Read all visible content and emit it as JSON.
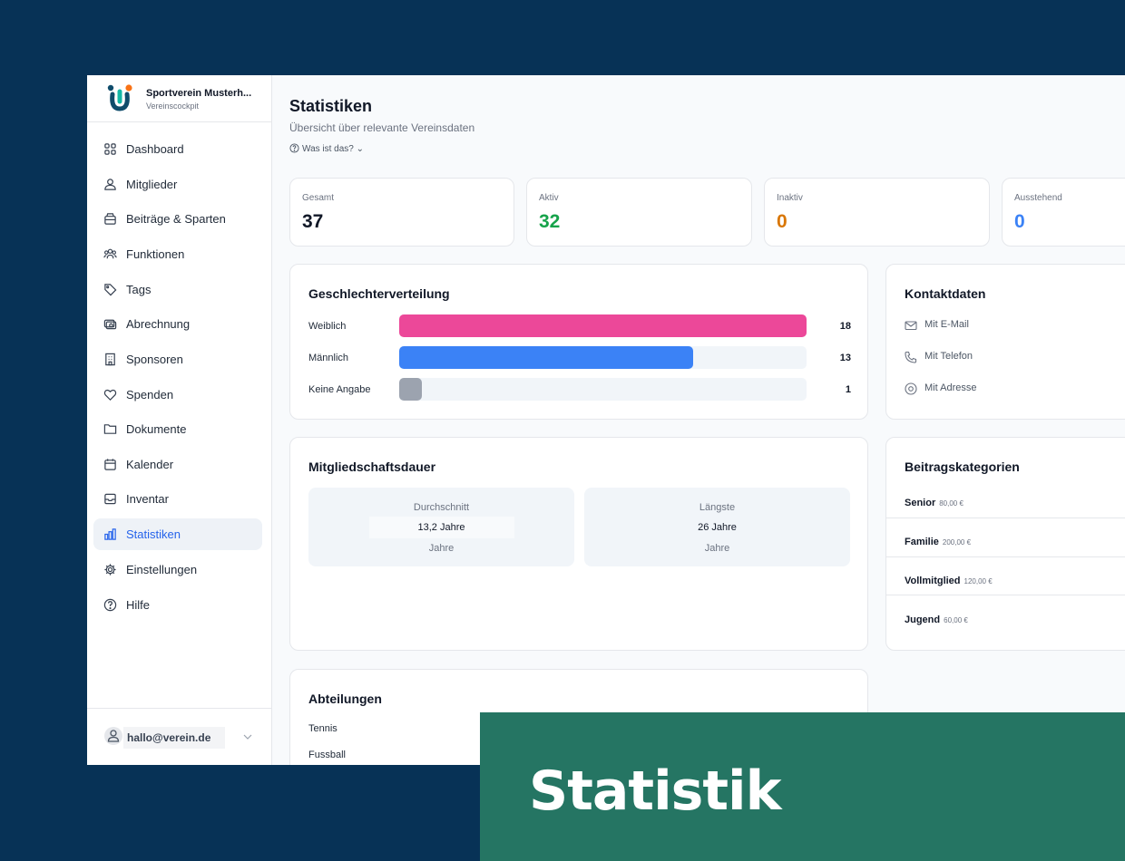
{
  "brand": {
    "name": "Sportverein Musterh...",
    "subtitle": "Vereinscockpit"
  },
  "sidebar": {
    "items": [
      {
        "label": "Dashboard",
        "icon": "grid-icon"
      },
      {
        "label": "Mitglieder",
        "icon": "users-icon"
      },
      {
        "label": "Beiträge & Sparten",
        "icon": "wallet-icon"
      },
      {
        "label": "Funktionen",
        "icon": "group-icon"
      },
      {
        "label": "Tags",
        "icon": "tag-icon"
      },
      {
        "label": "Abrechnung",
        "icon": "banknote-icon"
      },
      {
        "label": "Sponsoren",
        "icon": "building-icon"
      },
      {
        "label": "Spenden",
        "icon": "heart-icon"
      },
      {
        "label": "Dokumente",
        "icon": "folder-icon"
      },
      {
        "label": "Kalender",
        "icon": "calendar-icon"
      },
      {
        "label": "Inventar",
        "icon": "inbox-icon"
      },
      {
        "label": "Statistiken",
        "icon": "bar-chart-icon",
        "active": true
      },
      {
        "label": "Einstellungen",
        "icon": "gear-icon"
      },
      {
        "label": "Hilfe",
        "icon": "help-circle-icon"
      }
    ],
    "user_email": "hallo@verein.de"
  },
  "page": {
    "title": "Statistiken",
    "subtitle": "Übersicht über relevante Vereinsdaten",
    "help_link": "Was ist das?"
  },
  "stats": [
    {
      "label": "Gesamt",
      "value": "37",
      "color": "#111827"
    },
    {
      "label": "Aktiv",
      "value": "32",
      "color": "#16a34a"
    },
    {
      "label": "Inaktiv",
      "value": "0",
      "color": "#d97706"
    },
    {
      "label": "Ausstehend",
      "value": "0",
      "color": "#3b82f6"
    }
  ],
  "gender": {
    "title": "Geschlechterverteilung",
    "max": 18,
    "rows": [
      {
        "label": "Weiblich",
        "value": 18,
        "display": "18",
        "color": "#ec4899"
      },
      {
        "label": "Männlich",
        "value": 13,
        "display": "13",
        "color": "#3b82f6"
      },
      {
        "label": "Keine Angabe",
        "value": 1,
        "display": "1",
        "color": "#9ca3af"
      }
    ]
  },
  "contact": {
    "title": "Kontaktdaten",
    "rows": [
      {
        "label": "Mit E-Mail",
        "icon": "mail-icon"
      },
      {
        "label": "Mit Telefon",
        "icon": "phone-icon"
      },
      {
        "label": "Mit Adresse",
        "icon": "map-pin-icon"
      }
    ]
  },
  "duration": {
    "title": "Mitgliedschaftsdauer",
    "average": {
      "label": "Durchschnitt",
      "value": "13,2 Jahre",
      "unit": "Jahre"
    },
    "longest": {
      "label": "Längste",
      "value": "26 Jahre",
      "unit": "Jahre"
    }
  },
  "fees": {
    "title": "Beitragskategorien",
    "rows": [
      {
        "name": "Senior",
        "price": "80,00 €"
      },
      {
        "name": "Familie",
        "price": "200,00 €"
      },
      {
        "name": "Vollmitglied",
        "price": "120,00 €"
      },
      {
        "name": "Jugend",
        "price": "60,00 €"
      }
    ]
  },
  "departments": {
    "title": "Abteilungen",
    "rows": [
      "Tennis",
      "Fussball"
    ]
  },
  "banner": {
    "text": "Statistik"
  }
}
